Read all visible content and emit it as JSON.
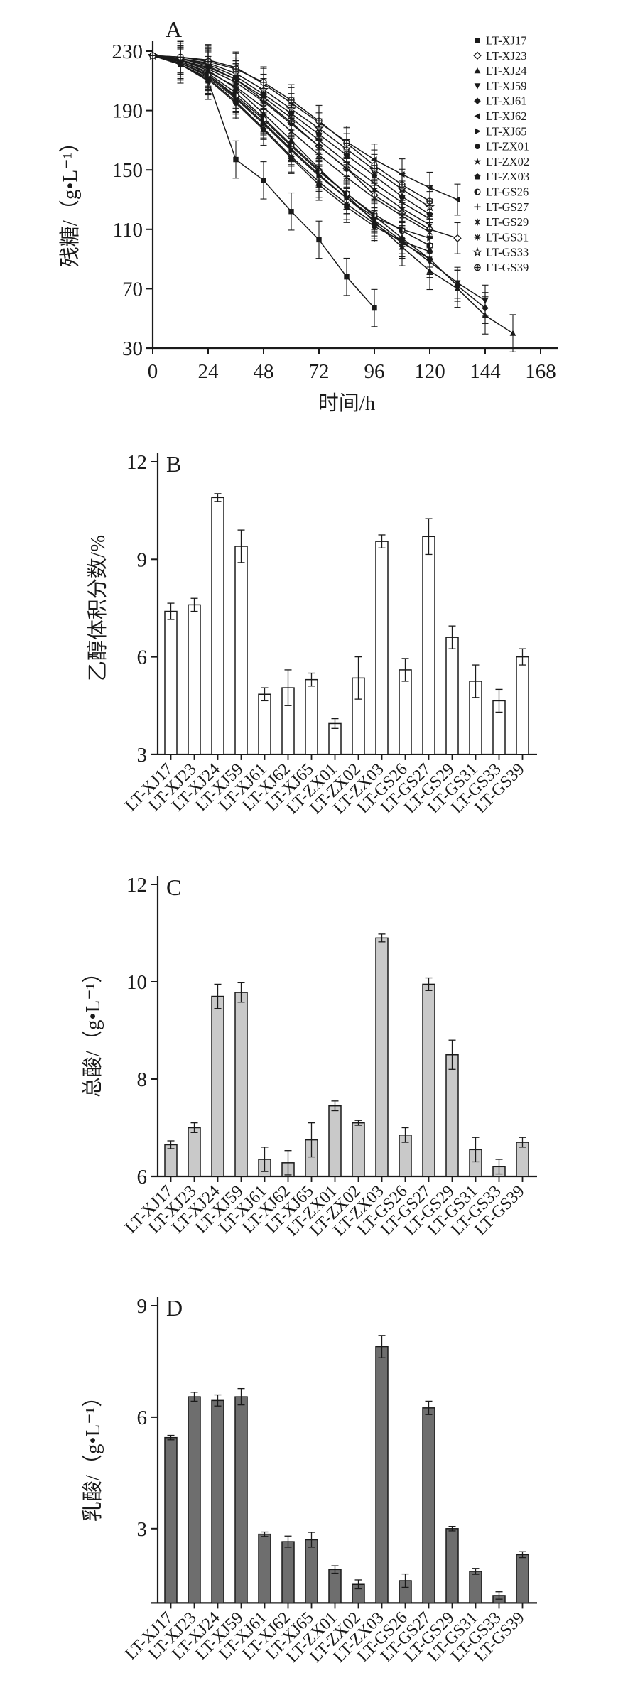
{
  "colors": {
    "ink": "#1a1a1a",
    "background": "#ffffff",
    "panel_b_bar": "#ffffff",
    "panel_c_bar": "#c9c9c9",
    "panel_d_bar": "#6e6e6e"
  },
  "chart_data": [
    {
      "id": "A",
      "panel_label": "A",
      "type": "line",
      "xlabel": "时间/h",
      "ylabel": "残糖/（g•L⁻¹）",
      "x_ticks": [
        0,
        24,
        48,
        72,
        96,
        120,
        144,
        168
      ],
      "y_ticks": [
        230,
        190,
        150,
        110,
        70,
        30
      ],
      "xlim": [
        0,
        175
      ],
      "ylim": [
        30,
        230
      ],
      "grid": false,
      "legend_position": "right",
      "series": [
        {
          "name": "LT-XJ17",
          "marker": "filled-square",
          "err": 6,
          "x": [
            0,
            12,
            24,
            36,
            48,
            60,
            72,
            84,
            96
          ],
          "y": [
            227,
            221,
            210,
            157,
            143,
            122,
            103,
            78,
            57
          ]
        },
        {
          "name": "LT-XJ23",
          "marker": "open-diamond",
          "err": 5,
          "x": [
            0,
            12,
            24,
            36,
            48,
            60,
            72,
            84,
            96,
            108,
            120,
            132
          ],
          "y": [
            227,
            225,
            220,
            211,
            197,
            182,
            166,
            151,
            133,
            121,
            110,
            104
          ]
        },
        {
          "name": "LT-XJ24",
          "marker": "filled-triangle-up",
          "err": 6,
          "x": [
            0,
            12,
            24,
            36,
            48,
            60,
            72,
            84,
            96,
            108,
            120,
            132,
            144,
            156
          ],
          "y": [
            227,
            224,
            217,
            205,
            188,
            170,
            151,
            133,
            115,
            98,
            82,
            70,
            52,
            40
          ]
        },
        {
          "name": "LT-XJ59",
          "marker": "filled-triangle-down",
          "err": 5,
          "x": [
            0,
            12,
            24,
            36,
            48,
            60,
            72,
            84,
            96,
            108,
            120,
            132,
            144
          ],
          "y": [
            227,
            222,
            214,
            199,
            182,
            164,
            147,
            131,
            116,
            102,
            88,
            74,
            62
          ]
        },
        {
          "name": "LT-XJ61",
          "marker": "filled-diamond",
          "err": 5,
          "x": [
            0,
            12,
            24,
            36,
            48,
            60,
            72,
            84,
            96,
            108,
            120,
            132,
            144
          ],
          "y": [
            227,
            223,
            215,
            202,
            185,
            167,
            150,
            134,
            119,
            104,
            90,
            72,
            57
          ]
        },
        {
          "name": "LT-XJ62",
          "marker": "filled-triangle-left",
          "err": 5,
          "x": [
            0,
            12,
            24,
            36,
            48,
            60,
            72,
            84,
            96,
            108,
            120,
            132
          ],
          "y": [
            227,
            226,
            224,
            219,
            208,
            195,
            182,
            169,
            157,
            147,
            138,
            130
          ]
        },
        {
          "name": "LT-XJ65",
          "marker": "filled-triangle-right",
          "err": 5,
          "x": [
            0,
            12,
            24,
            36,
            48,
            60,
            72,
            84,
            96,
            108,
            120
          ],
          "y": [
            227,
            222,
            213,
            198,
            181,
            163,
            146,
            131,
            118,
            110,
            104
          ]
        },
        {
          "name": "LT-ZX01",
          "marker": "filled-circle",
          "err": 5,
          "x": [
            0,
            12,
            24,
            36,
            48,
            60,
            72,
            84,
            96,
            108,
            120
          ],
          "y": [
            227,
            221,
            211,
            195,
            177,
            158,
            140,
            125,
            112,
            102,
            95
          ]
        },
        {
          "name": "LT-ZX02",
          "marker": "filled-star",
          "err": 6,
          "x": [
            0,
            12,
            24,
            36,
            48,
            60,
            72,
            84,
            96,
            108,
            120
          ],
          "y": [
            227,
            224,
            218,
            209,
            196,
            181,
            166,
            151,
            137,
            124,
            113
          ]
        },
        {
          "name": "LT-ZX03",
          "marker": "filled-pentagon",
          "err": 5,
          "x": [
            0,
            12,
            24,
            36,
            48,
            60,
            72,
            84,
            96,
            108,
            120
          ],
          "y": [
            227,
            225,
            221,
            213,
            201,
            188,
            174,
            160,
            146,
            132,
            120
          ]
        },
        {
          "name": "LT-GS26",
          "marker": "half-filled-circle",
          "err": 5,
          "x": [
            0,
            12,
            24,
            36,
            48,
            60,
            72,
            84,
            96,
            108,
            120
          ],
          "y": [
            227,
            222,
            214,
            200,
            184,
            166,
            149,
            134,
            120,
            109,
            99
          ]
        },
        {
          "name": "LT-GS27",
          "marker": "plus",
          "err": 6,
          "x": [
            0,
            12,
            24,
            36,
            48,
            60,
            72,
            84,
            96,
            108,
            120
          ],
          "y": [
            227,
            224,
            219,
            211,
            199,
            185,
            170,
            155,
            141,
            128,
            117
          ]
        },
        {
          "name": "LT-GS29",
          "marker": "x-vertical",
          "err": 5,
          "x": [
            0,
            12,
            24,
            36,
            48,
            60,
            72,
            84,
            96,
            108,
            120
          ],
          "y": [
            227,
            223,
            216,
            206,
            192,
            176,
            160,
            145,
            131,
            119,
            108
          ]
        },
        {
          "name": "LT-GS31",
          "marker": "asterisk",
          "err": 5,
          "x": [
            0,
            12,
            24,
            36,
            48,
            60,
            72,
            84,
            96,
            108,
            120
          ],
          "y": [
            227,
            221,
            212,
            196,
            178,
            159,
            142,
            127,
            114,
            101,
            90
          ]
        },
        {
          "name": "LT-GS33",
          "marker": "open-star",
          "err": 5,
          "x": [
            0,
            12,
            24,
            36,
            48,
            60,
            72,
            84,
            96,
            108,
            120
          ],
          "y": [
            227,
            225,
            222,
            215,
            204,
            191,
            178,
            164,
            150,
            137,
            125
          ]
        },
        {
          "name": "LT-GS39",
          "marker": "circle-plus",
          "err": 5,
          "x": [
            0,
            12,
            24,
            36,
            48,
            60,
            72,
            84,
            96,
            108,
            120
          ],
          "y": [
            227,
            226,
            223,
            218,
            209,
            197,
            183,
            168,
            153,
            140,
            129
          ]
        }
      ]
    },
    {
      "id": "B",
      "panel_label": "B",
      "type": "bar",
      "ylabel": "乙醇体积分数/%",
      "y_ticks": [
        12,
        9,
        6,
        3
      ],
      "ylim": [
        3,
        12
      ],
      "grid": false,
      "categories": [
        "LT-XJ17",
        "LT-XJ23",
        "LT-XJ24",
        "LT-XJ59",
        "LT-XJ61",
        "LT-XJ62",
        "LT-XJ65",
        "LT-ZX01",
        "LT-ZX02",
        "LT-ZX03",
        "LT-GS26",
        "LT-GS27",
        "LT-GS29",
        "LT-GS31",
        "LT-GS33",
        "LT-GS39"
      ],
      "values": [
        7.4,
        7.6,
        10.9,
        9.4,
        4.85,
        5.05,
        5.3,
        3.95,
        5.35,
        9.55,
        5.6,
        9.7,
        6.6,
        5.25,
        4.65,
        6.0
      ],
      "errors": [
        0.25,
        0.2,
        0.12,
        0.5,
        0.2,
        0.55,
        0.2,
        0.15,
        0.65,
        0.2,
        0.35,
        0.55,
        0.35,
        0.5,
        0.35,
        0.25
      ]
    },
    {
      "id": "C",
      "panel_label": "C",
      "type": "bar",
      "ylabel": "总酸/（g•L⁻¹）",
      "y_ticks": [
        12,
        10,
        8,
        6
      ],
      "ylim": [
        6,
        12
      ],
      "grid": false,
      "categories": [
        "LT-XJ17",
        "LT-XJ23",
        "LT-XJ24",
        "LT-XJ59",
        "LT-XJ61",
        "LT-XJ62",
        "LT-XJ65",
        "LT-ZX01",
        "LT-ZX02",
        "LT-ZX03",
        "LT-GS26",
        "LT-GS27",
        "LT-GS29",
        "LT-GS31",
        "LT-GS33",
        "LT-GS39"
      ],
      "values": [
        6.65,
        7.0,
        9.7,
        9.78,
        6.35,
        6.28,
        6.75,
        7.45,
        7.1,
        10.9,
        6.85,
        9.95,
        8.5,
        6.55,
        6.2,
        6.7
      ],
      "errors": [
        0.08,
        0.1,
        0.25,
        0.2,
        0.25,
        0.25,
        0.35,
        0.1,
        0.05,
        0.08,
        0.15,
        0.13,
        0.3,
        0.25,
        0.15,
        0.1
      ]
    },
    {
      "id": "D",
      "panel_label": "D",
      "type": "bar",
      "ylabel": "乳酸/（g•L⁻¹）",
      "y_ticks": [
        9,
        6,
        3
      ],
      "ylim": [
        1,
        9
      ],
      "grid": false,
      "categories": [
        "LT-XJ17",
        "LT-XJ23",
        "LT-XJ24",
        "LT-XJ59",
        "LT-XJ61",
        "LT-XJ62",
        "LT-XJ65",
        "LT-ZX01",
        "LT-ZX02",
        "LT-ZX03",
        "LT-GS26",
        "LT-GS27",
        "LT-GS29",
        "LT-GS31",
        "LT-GS33",
        "LT-GS39"
      ],
      "values": [
        5.45,
        6.55,
        6.45,
        6.55,
        2.85,
        2.65,
        2.7,
        1.9,
        1.5,
        7.9,
        1.6,
        6.25,
        3.0,
        1.85,
        1.2,
        2.3
      ],
      "errors": [
        0.06,
        0.12,
        0.15,
        0.22,
        0.06,
        0.15,
        0.2,
        0.1,
        0.12,
        0.3,
        0.18,
        0.18,
        0.06,
        0.08,
        0.1,
        0.08
      ]
    }
  ]
}
